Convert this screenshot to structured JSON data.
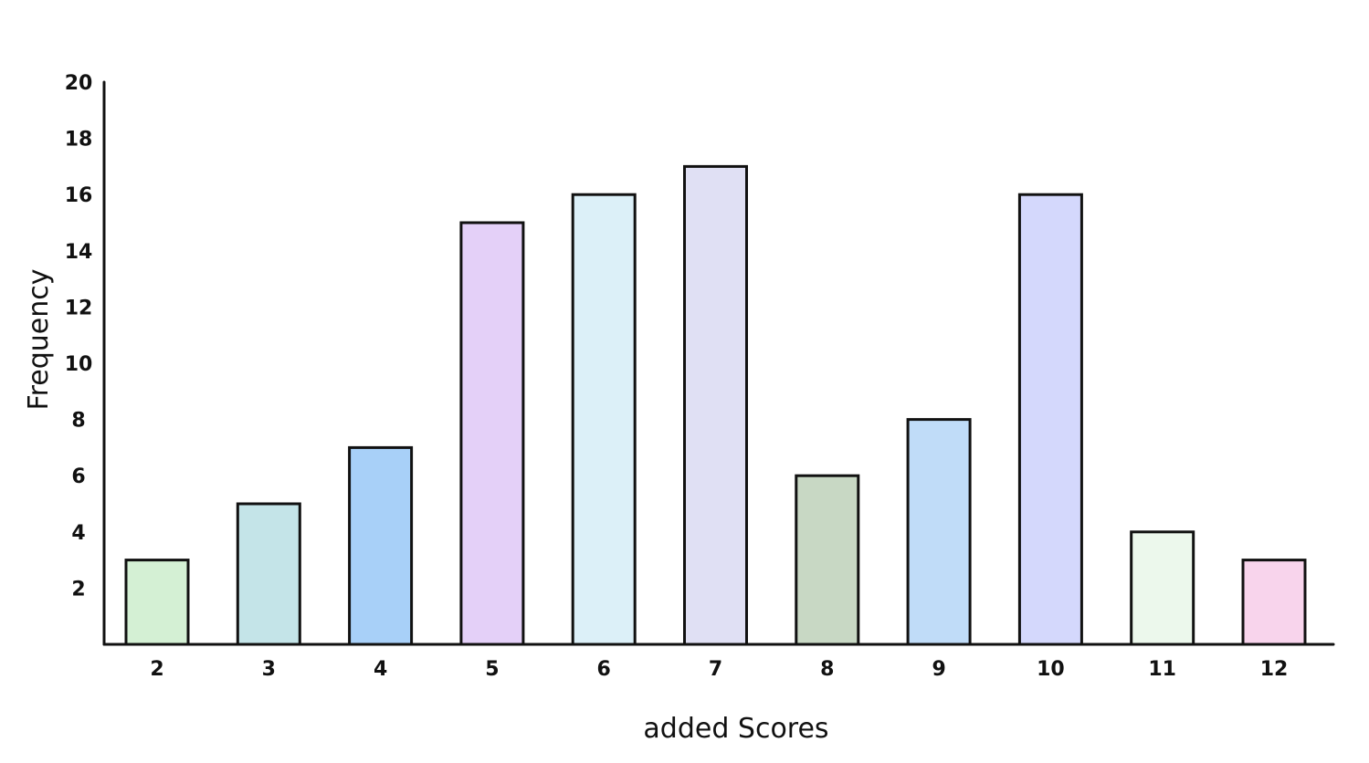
{
  "chart_data": {
    "type": "bar",
    "categories": [
      "2",
      "3",
      "4",
      "5",
      "6",
      "7",
      "8",
      "9",
      "10",
      "11",
      "12"
    ],
    "values": [
      3,
      5,
      7,
      15,
      16,
      17,
      6,
      8,
      16,
      4,
      3
    ],
    "colors": [
      "#d4f0d4",
      "#c4e4e8",
      "#a8d0f8",
      "#e4d0f8",
      "#dcf0f8",
      "#e0e0f4",
      "#c8d8c4",
      "#c0dcf8",
      "#d4d8fc",
      "#ecf8ec",
      "#f8d4ec"
    ],
    "title": "",
    "xlabel": "added Scores",
    "ylabel": "Frequency",
    "ylim": [
      0,
      20
    ],
    "yticks": [
      "2",
      "4",
      "6",
      "8",
      "10",
      "12",
      "14",
      "16",
      "18",
      "20"
    ],
    "grid": false,
    "legend": "none"
  }
}
